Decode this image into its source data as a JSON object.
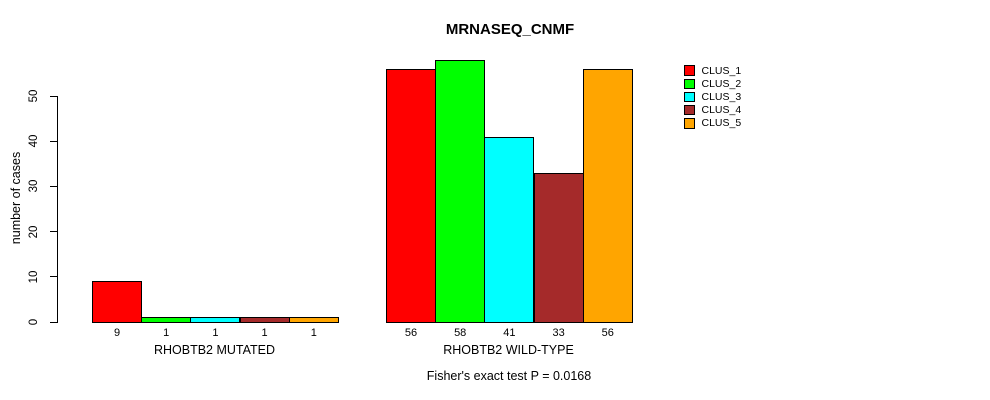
{
  "title": "MRNASEQ_CNMF",
  "caption": "Fisher's exact test P = 0.0168",
  "ylabel": "number of cases",
  "chart_data": {
    "type": "bar",
    "title": "MRNASEQ_CNMF",
    "xlabel": "",
    "ylabel": "number of cases",
    "ylim": [
      0,
      58
    ],
    "yticks": [
      0,
      10,
      20,
      30,
      40,
      50
    ],
    "grid": false,
    "legend_position": "right",
    "bar_value_labels_shown": true,
    "annotation": "Fisher's exact test P = 0.0168",
    "groups": [
      {
        "label": "RHOBTB2 MUTATED",
        "values": [
          9,
          1,
          1,
          1,
          1
        ]
      },
      {
        "label": "RHOBTB2 WILD-TYPE",
        "values": [
          56,
          58,
          41,
          33,
          56
        ]
      }
    ],
    "series": [
      {
        "name": "CLUS_1",
        "color": "#FF0000",
        "values": [
          9,
          56
        ]
      },
      {
        "name": "CLUS_2",
        "color": "#00FF00",
        "values": [
          1,
          58
        ]
      },
      {
        "name": "CLUS_3",
        "color": "#00FFFF",
        "values": [
          1,
          41
        ]
      },
      {
        "name": "CLUS_4",
        "color": "#A52A2A",
        "values": [
          1,
          33
        ]
      },
      {
        "name": "CLUS_5",
        "color": "#FFA500",
        "values": [
          1,
          56
        ]
      }
    ]
  }
}
